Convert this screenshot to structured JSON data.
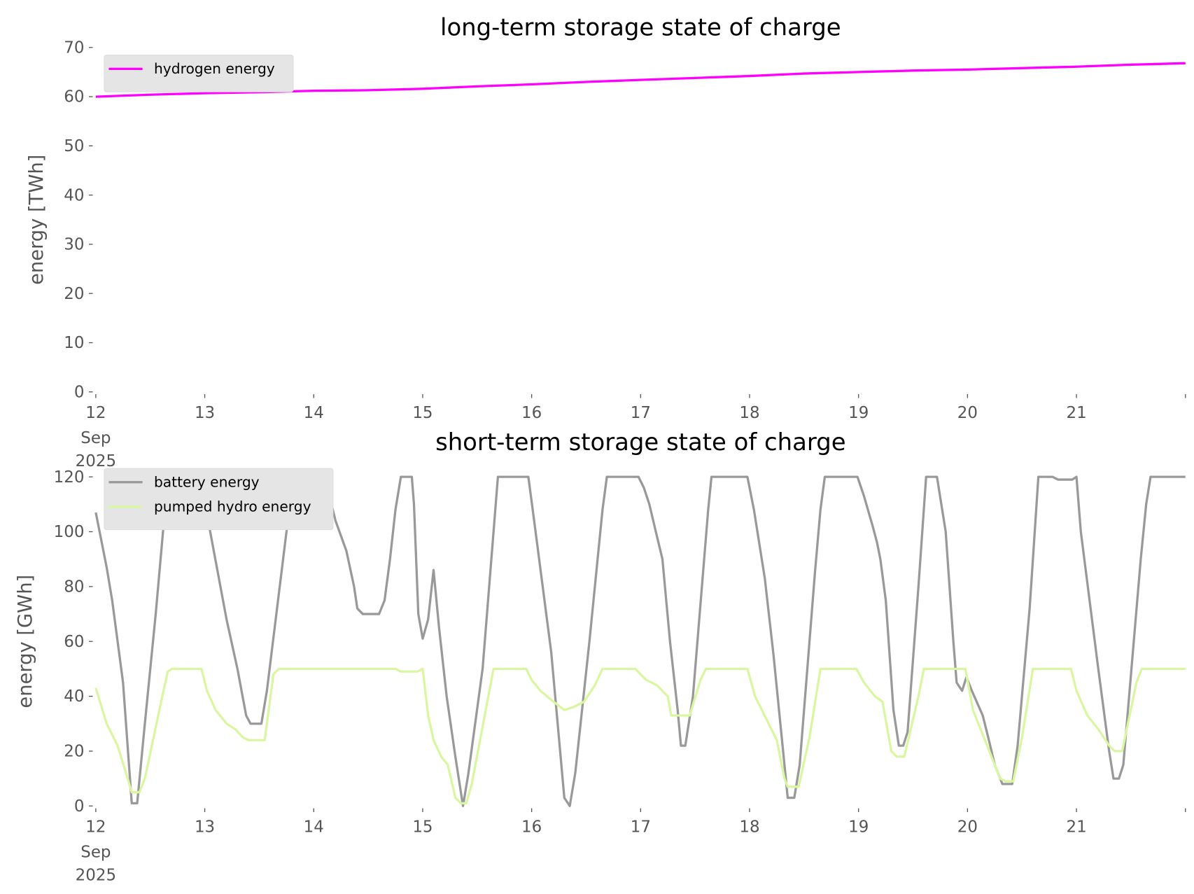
{
  "chart_data": [
    {
      "type": "line",
      "title": "long-term storage state of charge",
      "xlabel": "",
      "ylabel": "energy [TWh]",
      "xlim": [
        12,
        22
      ],
      "ylim": [
        0,
        70
      ],
      "yticks": [
        0,
        10,
        20,
        30,
        40,
        50,
        60,
        70
      ],
      "xticks": [
        12,
        13,
        14,
        15,
        16,
        17,
        18,
        19,
        20,
        21,
        22
      ],
      "xtick_labels": [
        "12",
        "13",
        "14",
        "15",
        "16",
        "17",
        "18",
        "19",
        "20",
        "21",
        ""
      ],
      "xtick_sublabel": [
        "Sep",
        "2025"
      ],
      "x_unit": "day of Sep 2025",
      "legend_position": "top-left",
      "series": [
        {
          "name": "hydrogen energy",
          "color": "#ff00ff",
          "x": [
            12,
            12.5,
            13,
            13.5,
            14,
            14.5,
            15,
            15.5,
            16,
            16.5,
            17,
            17.5,
            18,
            18.5,
            19,
            19.5,
            20,
            20.5,
            21,
            21.5,
            22
          ],
          "y": [
            60,
            60.4,
            60.7,
            60.9,
            61.2,
            61.3,
            61.6,
            62.1,
            62.5,
            63.0,
            63.4,
            63.8,
            64.2,
            64.7,
            65.0,
            65.3,
            65.5,
            65.8,
            66.1,
            66.5,
            66.8
          ]
        }
      ]
    },
    {
      "type": "line",
      "title": "short-term storage state of charge",
      "xlabel": "",
      "ylabel": "energy [GWh]",
      "xlim": [
        12,
        22
      ],
      "ylim": [
        0,
        120
      ],
      "yticks": [
        0,
        20,
        40,
        60,
        80,
        100,
        120
      ],
      "xticks": [
        12,
        13,
        14,
        15,
        16,
        17,
        18,
        19,
        20,
        21,
        22
      ],
      "xtick_labels": [
        "12",
        "13",
        "14",
        "15",
        "16",
        "17",
        "18",
        "19",
        "20",
        "21",
        ""
      ],
      "xtick_sublabel": [
        "Sep",
        "2025"
      ],
      "x_unit": "day of Sep 2025",
      "legend_position": "top-left",
      "series": [
        {
          "name": "battery energy",
          "color": "#999999",
          "x": [
            12,
            12.1,
            12.15,
            12.25,
            12.33,
            12.38,
            12.45,
            12.55,
            12.65,
            12.7,
            12.8,
            12.88,
            12.93,
            12.97,
            13.05,
            13.2,
            13.3,
            13.38,
            13.42,
            13.52,
            13.57,
            13.75,
            13.83,
            14.0,
            14.07,
            14.15,
            14.2,
            14.3,
            14.37,
            14.4,
            14.45,
            14.6,
            14.65,
            14.7,
            14.75,
            14.8,
            14.9,
            14.92,
            14.96,
            15.0,
            15.05,
            15.1,
            15.15,
            15.22,
            15.3,
            15.37,
            15.42,
            15.55,
            15.65,
            15.69,
            15.97,
            16.02,
            16.18,
            16.3,
            16.35,
            16.4,
            16.53,
            16.65,
            16.69,
            16.98,
            17.03,
            17.08,
            17.14,
            17.2,
            17.27,
            17.34,
            17.37,
            17.41,
            17.48,
            17.62,
            17.65,
            17.98,
            18.04,
            18.14,
            18.22,
            18.32,
            18.35,
            18.41,
            18.46,
            18.6,
            18.65,
            18.69,
            18.99,
            19.05,
            19.13,
            19.17,
            19.2,
            19.25,
            19.32,
            19.37,
            19.41,
            19.45,
            19.55,
            19.62,
            19.72,
            19.8,
            19.87,
            19.9,
            19.95,
            19.99,
            20.04,
            20.14,
            20.19,
            20.25,
            20.32,
            20.41,
            20.46,
            20.57,
            20.65,
            20.78,
            20.83,
            20.96,
            21.0,
            21.04,
            21.2,
            21.3,
            21.34,
            21.39,
            21.43,
            21.59,
            21.64,
            21.68,
            22.0
          ],
          "y": [
            107,
            87,
            75,
            45,
            1,
            1,
            30,
            70,
            115,
            120,
            120,
            103,
            108,
            116,
            100,
            68,
            50,
            33,
            30,
            30,
            42,
            100,
            120,
            120,
            117,
            112,
            104,
            93,
            80,
            72,
            70,
            70,
            75,
            90,
            108,
            120,
            120,
            110,
            70,
            61,
            68,
            86,
            65,
            40,
            18,
            0,
            12,
            50,
            100,
            120,
            120,
            105,
            56,
            3,
            0,
            12,
            60,
            108,
            120,
            120,
            116,
            110,
            100,
            90,
            60,
            35,
            22,
            22,
            40,
            108,
            120,
            120,
            108,
            83,
            55,
            15,
            3,
            3,
            15,
            85,
            108,
            120,
            120,
            113,
            102,
            96,
            90,
            75,
            35,
            22,
            22,
            27,
            80,
            120,
            120,
            100,
            60,
            45,
            42,
            47,
            42,
            33,
            25,
            15,
            8,
            8,
            22,
            72,
            120,
            120,
            119,
            119,
            120,
            100,
            50,
            20,
            10,
            10,
            15,
            90,
            110,
            120,
            120
          ]
        },
        {
          "name": "pumped hydro energy",
          "color": "#d9f7a1",
          "x": [
            12,
            12.1,
            12.2,
            12.27,
            12.33,
            12.4,
            12.45,
            12.6,
            12.66,
            12.7,
            12.97,
            13.02,
            13.1,
            13.2,
            13.28,
            13.35,
            13.4,
            13.55,
            13.63,
            13.68,
            14.75,
            14.8,
            14.95,
            15.0,
            15.05,
            15.1,
            15.17,
            15.23,
            15.3,
            15.35,
            15.4,
            15.45,
            15.65,
            15.95,
            16.0,
            16.08,
            16.2,
            16.3,
            16.38,
            16.48,
            16.58,
            16.65,
            16.95,
            17.05,
            17.15,
            17.25,
            17.28,
            17.45,
            17.55,
            17.6,
            17.98,
            18.05,
            18.15,
            18.2,
            18.25,
            18.32,
            18.35,
            18.45,
            18.55,
            18.65,
            18.98,
            19.05,
            19.15,
            19.22,
            19.3,
            19.35,
            19.42,
            19.55,
            19.6,
            19.98,
            20.05,
            20.12,
            20.2,
            20.25,
            20.3,
            20.35,
            20.42,
            20.5,
            20.6,
            20.95,
            21.0,
            21.1,
            21.2,
            21.3,
            21.35,
            21.42,
            21.55,
            21.6,
            22.0
          ],
          "y": [
            43,
            30,
            22,
            13,
            5,
            5,
            10,
            38,
            49,
            50,
            50,
            42,
            35,
            30,
            28,
            25,
            24,
            24,
            48,
            50,
            50,
            49,
            49,
            50,
            33,
            24,
            18,
            15,
            3,
            1,
            1,
            8,
            50,
            50,
            46,
            42,
            38,
            35,
            36,
            38,
            44,
            50,
            50,
            46,
            44,
            40,
            33,
            33,
            46,
            50,
            50,
            40,
            32,
            28,
            24,
            10,
            7,
            7,
            25,
            50,
            50,
            45,
            40,
            38,
            20,
            18,
            18,
            40,
            50,
            50,
            35,
            28,
            20,
            15,
            10,
            9,
            9,
            25,
            50,
            50,
            42,
            33,
            28,
            22,
            20,
            20,
            45,
            50,
            50
          ]
        }
      ]
    }
  ]
}
